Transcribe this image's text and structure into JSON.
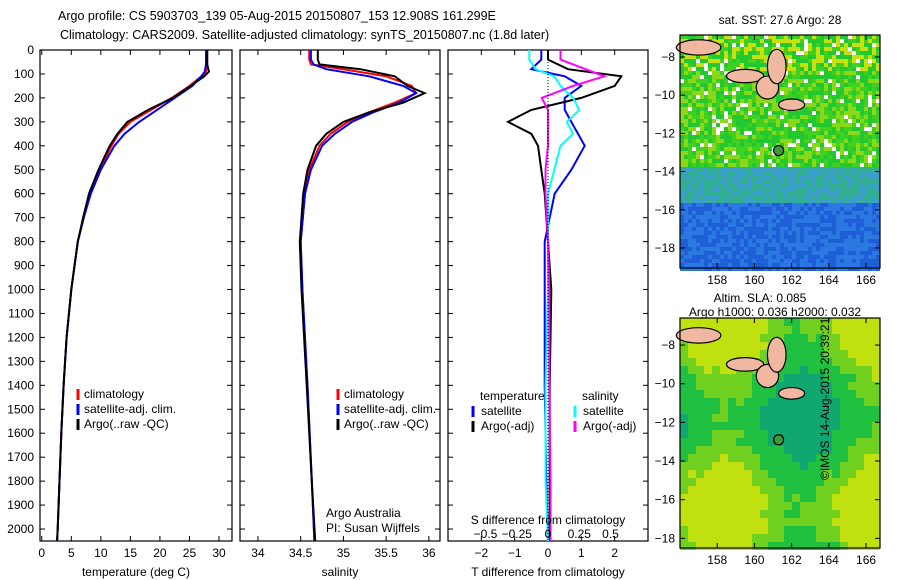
{
  "title_line1": "Argo profile: CS 5903703_139 05-Aug-2015 20150807_153 12.908S 161.299E",
  "title_line2": "Climatology: CARS2009. Satellite-adjusted climatology: synTS_20150807.nc (1.8d later)",
  "credit": "Argo Australia",
  "pi": "PI: Susan Wijffels",
  "footer": "©IMOS 14-Aug-2015 20:39:21",
  "colors": {
    "clim": "#ff0000",
    "sat": "#0000ff",
    "argo": "#000000",
    "s_sat": "#00ffff",
    "s_argo": "#ff00ff"
  },
  "chart_data": [
    {
      "type": "line",
      "name": "temperature",
      "xlabel": "temperature (deg C)",
      "ylabel": "",
      "xlim": [
        -0.3,
        32.2
      ],
      "ylim": [
        2050,
        0
      ],
      "xticks": [
        0,
        5,
        10,
        15,
        20,
        25,
        30
      ],
      "yticks": [
        0,
        100,
        200,
        300,
        400,
        500,
        600,
        700,
        800,
        900,
        1000,
        1100,
        1200,
        1300,
        1400,
        1500,
        1600,
        1700,
        1800,
        1900,
        2000
      ],
      "legend": [
        "climatology",
        "satellite-adj. clim.",
        "Argo(..raw -QC)"
      ],
      "depth": [
        0,
        60,
        90,
        110,
        150,
        200,
        250,
        300,
        350,
        400,
        500,
        600,
        700,
        800,
        1000,
        1200,
        1400,
        1600,
        1800,
        2000,
        2050
      ],
      "series": [
        {
          "name": "climatology",
          "values": [
            28,
            28,
            27.8,
            27,
            25,
            22,
            18.5,
            15,
            13,
            11.8,
            9.8,
            8.2,
            7.1,
            6.1,
            5,
            4.2,
            3.7,
            3.3,
            3,
            2.7,
            2.6
          ]
        },
        {
          "name": "satellite-adj. clim.",
          "values": [
            27.8,
            27.8,
            27.6,
            27,
            25.5,
            22.5,
            19.5,
            16.5,
            14,
            12.3,
            10,
            8.3,
            7.1,
            6.1,
            5,
            4.2,
            3.7,
            3.3,
            3,
            2.7,
            2.6
          ]
        },
        {
          "name": "Argo",
          "values": [
            28,
            28,
            28.3,
            27.5,
            25.2,
            22.2,
            18,
            14.5,
            12.8,
            11.5,
            9.6,
            8,
            7,
            6.1,
            5,
            4.2,
            3.7,
            3.3,
            3,
            2.7,
            2.6
          ]
        }
      ]
    },
    {
      "type": "line",
      "name": "salinity",
      "xlabel": "salinity",
      "ylabel": "",
      "xlim": [
        33.79,
        36.13
      ],
      "ylim": [
        2050,
        0
      ],
      "xticks": [
        34,
        34.5,
        35,
        35.5,
        36
      ],
      "legend": [
        "climatology",
        "satellite-adj. clim.",
        "Argo(..raw -QC)"
      ],
      "depth": [
        0,
        40,
        60,
        80,
        110,
        150,
        180,
        220,
        260,
        300,
        350,
        400,
        500,
        600,
        800,
        1000,
        1400,
        1800,
        2050
      ],
      "series": [
        {
          "name": "climatology",
          "values": [
            34.6,
            34.6,
            34.62,
            35.0,
            35.5,
            35.8,
            35.85,
            35.6,
            35.3,
            35.05,
            34.85,
            34.72,
            34.6,
            34.55,
            34.5,
            34.52,
            34.58,
            34.63,
            34.66
          ]
        },
        {
          "name": "satellite-adj. clim.",
          "values": [
            34.62,
            34.62,
            34.65,
            34.8,
            35.3,
            35.7,
            35.85,
            35.65,
            35.35,
            35.1,
            34.9,
            34.75,
            34.62,
            34.55,
            34.5,
            34.52,
            34.58,
            34.63,
            34.66
          ]
        },
        {
          "name": "Argo",
          "values": [
            34.7,
            34.7,
            34.72,
            35.2,
            35.6,
            35.75,
            35.95,
            35.7,
            35.3,
            35.0,
            34.8,
            34.68,
            34.58,
            34.53,
            34.49,
            34.51,
            34.57,
            34.63,
            34.67
          ]
        }
      ]
    },
    {
      "type": "line",
      "name": "difference",
      "xlabel": "T difference from climatology",
      "x2label": "S difference from climatology",
      "xlim": [
        -3,
        3
      ],
      "x2lim": [
        -0.8,
        0.8
      ],
      "ylim": [
        2050,
        0
      ],
      "xticks": [
        -2,
        -1,
        0,
        1,
        2
      ],
      "x2ticks": [
        -0.5,
        -0.25,
        0,
        0.25,
        0.5
      ],
      "legend_t": "temperature",
      "legend_s": "salinity",
      "legend": [
        "satellite",
        "Argo(-adj)",
        "satellite",
        "Argo(-adj)"
      ],
      "depth": [
        0,
        40,
        80,
        110,
        150,
        200,
        250,
        300,
        350,
        400,
        500,
        600,
        800,
        1000,
        1400,
        1800,
        2050
      ],
      "series": [
        {
          "name": "T satellite",
          "values": [
            -0.2,
            -0.2,
            -0.5,
            0.5,
            1.0,
            0.5,
            0.5,
            0.7,
            0.9,
            1.1,
            0.7,
            0.2,
            -0.1,
            -0.1,
            -0.1,
            -0.05,
            0
          ]
        },
        {
          "name": "T Argo(-adj)",
          "values": [
            0,
            0,
            0.6,
            2.2,
            2.0,
            1.0,
            -0.5,
            -1.2,
            -0.5,
            -0.3,
            -0.2,
            -0.1,
            0,
            0.1,
            0.05,
            0.05,
            0.05
          ]
        },
        {
          "name": "S satellite",
          "values": [
            -0.15,
            -0.15,
            -0.1,
            0.05,
            0.1,
            0.2,
            0.25,
            0.15,
            0.2,
            0.1,
            0.05,
            0,
            0,
            0,
            -0.02,
            -0.02,
            0
          ]
        },
        {
          "name": "S Argo(-adj)",
          "values": [
            0.1,
            0.1,
            0.3,
            0.45,
            0.2,
            -0.05,
            0,
            0,
            0,
            0,
            -0.02,
            -0.02,
            0,
            0.01,
            0.01,
            0.02,
            0.02
          ]
        }
      ]
    },
    {
      "type": "heatmap",
      "name": "sst-map",
      "title": "sat. SST: 27.6 Argo: 28",
      "xticks": [
        158,
        160,
        162,
        164,
        166
      ],
      "yticks": [
        -8,
        -10,
        -12,
        -14,
        -16,
        -18
      ],
      "xlim": [
        156,
        166.75
      ],
      "ylim": [
        -19.05,
        -6.85
      ],
      "marker": [
        161.3,
        -12.9
      ]
    },
    {
      "type": "heatmap",
      "name": "sla-map",
      "title": "Altim. SLA: 0.085",
      "subtitle": "Argo h1000: 0.036 h2000: 0.032",
      "xticks": [
        158,
        160,
        162,
        164,
        166
      ],
      "yticks": [
        -8,
        -10,
        -12,
        -14,
        -16,
        -18
      ],
      "xlim": [
        156,
        166.75
      ],
      "ylim": [
        -18.5,
        -6.6
      ],
      "marker": [
        161.3,
        -12.9
      ]
    }
  ]
}
